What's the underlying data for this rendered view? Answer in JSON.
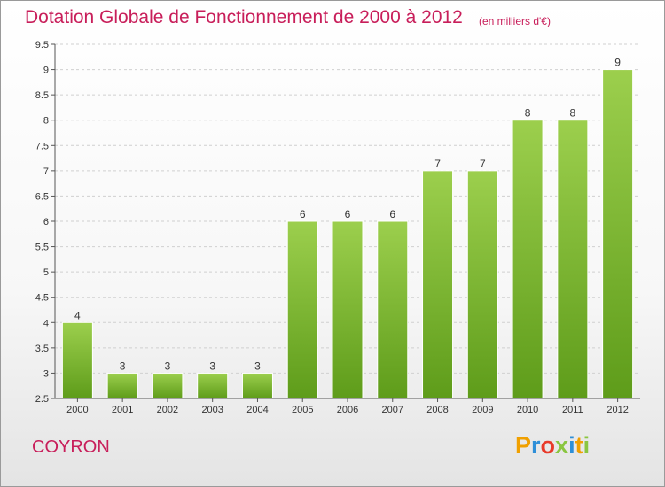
{
  "header": {
    "title": "Dotation Globale de Fonctionnement de 2000 à 2012",
    "unit": "(en milliers d'€)"
  },
  "footer": {
    "commune": "COYRON",
    "logo_letters": [
      "P",
      "r",
      "o",
      "x",
      "i",
      "t",
      "i"
    ],
    "logo_colors": [
      "#f0a000",
      "#2e8fd8",
      "#e83a2a",
      "#8ac640",
      "#2e8fd8",
      "#f0a000",
      "#8ac640"
    ]
  },
  "chart_data": {
    "type": "bar",
    "title": "Dotation Globale de Fonctionnement de 2000 à 2012",
    "subtitle": "(en milliers d'€)",
    "categories": [
      "2000",
      "2001",
      "2002",
      "2003",
      "2004",
      "2005",
      "2006",
      "2007",
      "2008",
      "2009",
      "2010",
      "2011",
      "2012"
    ],
    "values": [
      4,
      3,
      3,
      3,
      3,
      6,
      6,
      6,
      7,
      7,
      8,
      8,
      9
    ],
    "ylim": [
      2.5,
      9.5
    ],
    "yticks": [
      "2.5",
      "3",
      "3.5",
      "4",
      "4.5",
      "5",
      "5.5",
      "6",
      "6.5",
      "7",
      "7.5",
      "8",
      "8.5",
      "9",
      "9.5"
    ],
    "grid": true,
    "bar_color": "#7cb82f"
  }
}
